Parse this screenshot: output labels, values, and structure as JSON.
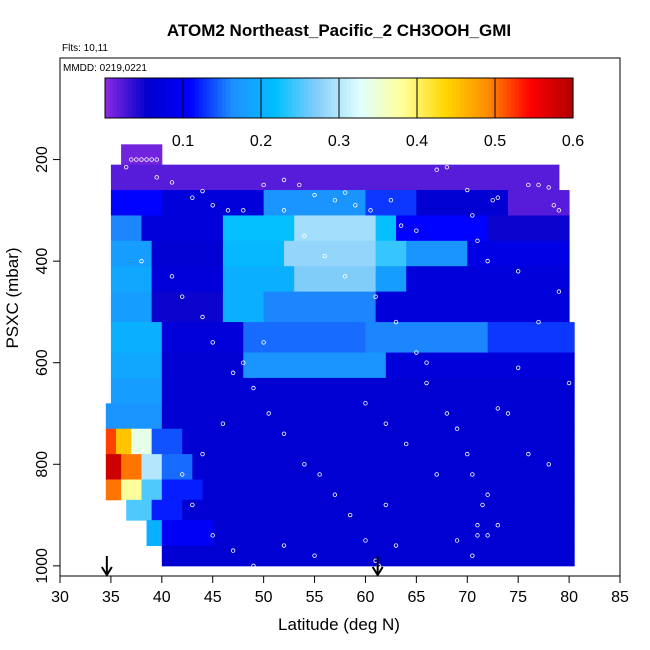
{
  "chart_data": {
    "type": "heatmap",
    "title": "ATOM2 Northeast_Pacific_2 CH3OOH_GMI",
    "flights_label": "Flts: 10,11",
    "dates_label": "MMDD: 0219,0221",
    "xlabel": "Latitude (deg N)",
    "ylabel": "PSXC (mbar)",
    "xlim": [
      30,
      85
    ],
    "ylim": [
      1020,
      0
    ],
    "xticks": [
      "30",
      "35",
      "40",
      "45",
      "50",
      "55",
      "60",
      "65",
      "70",
      "75",
      "80",
      "85"
    ],
    "yticks": [
      "200",
      "400",
      "600",
      "800",
      "1000"
    ],
    "colorbar": {
      "range": [
        0,
        0.6
      ],
      "ticks": [
        "0.1",
        "0.2",
        "0.3",
        "0.4",
        "0.5",
        "0.6"
      ],
      "colors": [
        "#8a2be2",
        "#0000cd",
        "#0000ff",
        "#1e90ff",
        "#00bfff",
        "#87cefa",
        "#e0ffff",
        "#ffff99",
        "#ffd700",
        "#ff8c00",
        "#ff0000",
        "#b00000"
      ]
    },
    "markers_lat": [
      34.6,
      61.2
    ],
    "rows": [
      {
        "p": [
          170,
          210
        ],
        "cells": [
          [
            36,
            40,
            0.01
          ]
        ]
      },
      {
        "p": [
          210,
          260
        ],
        "cells": [
          [
            35,
            58.5,
            0.02
          ],
          [
            58.5,
            79,
            0.02
          ]
        ]
      },
      {
        "p": [
          260,
          310
        ],
        "cells": [
          [
            35,
            40,
            0.11
          ],
          [
            40,
            50,
            0.07
          ],
          [
            50,
            60,
            0.17
          ],
          [
            60,
            65,
            0.13
          ],
          [
            65,
            74,
            0.06
          ],
          [
            74,
            80,
            0.02
          ]
        ]
      },
      {
        "p": [
          310,
          360
        ],
        "cells": [
          [
            35,
            38,
            0.16
          ],
          [
            38,
            46,
            0.07
          ],
          [
            46,
            53,
            0.22
          ],
          [
            53,
            61,
            0.29
          ],
          [
            61,
            63,
            0.22
          ],
          [
            63,
            72,
            0.11
          ],
          [
            72,
            80,
            0.05
          ]
        ]
      },
      {
        "p": [
          360,
          410
        ],
        "cells": [
          [
            35,
            39,
            0.18
          ],
          [
            39,
            46,
            0.06
          ],
          [
            46,
            52,
            0.21
          ],
          [
            52,
            61,
            0.28
          ],
          [
            61,
            64,
            0.24
          ],
          [
            64,
            70,
            0.17
          ],
          [
            70,
            80,
            0.08
          ]
        ]
      },
      {
        "p": [
          410,
          460
        ],
        "cells": [
          [
            35,
            39,
            0.19
          ],
          [
            39,
            46,
            0.07
          ],
          [
            46,
            53,
            0.2
          ],
          [
            53,
            61,
            0.27
          ],
          [
            61,
            64,
            0.18
          ],
          [
            64,
            72,
            0.07
          ],
          [
            72,
            80,
            0.07
          ]
        ]
      },
      {
        "p": [
          460,
          520
        ],
        "cells": [
          [
            35,
            39,
            0.18
          ],
          [
            39,
            46,
            0.05
          ],
          [
            46,
            50,
            0.2
          ],
          [
            50,
            61,
            0.16
          ],
          [
            61,
            80,
            0.07
          ]
        ]
      },
      {
        "p": [
          520,
          580
        ],
        "cells": [
          [
            35,
            40,
            0.2
          ],
          [
            40,
            48,
            0.07
          ],
          [
            48,
            60,
            0.15
          ],
          [
            60,
            72,
            0.16
          ],
          [
            72,
            80.5,
            0.13
          ]
        ]
      },
      {
        "p": [
          580,
          630
        ],
        "cells": [
          [
            35,
            40,
            0.19
          ],
          [
            40,
            48,
            0.06
          ],
          [
            48,
            62,
            0.17
          ],
          [
            62,
            80.5,
            0.07
          ]
        ]
      },
      {
        "p": [
          630,
          680
        ],
        "cells": [
          [
            35,
            40,
            0.18
          ],
          [
            40,
            80.5,
            0.06
          ]
        ]
      },
      {
        "p": [
          680,
          730
        ],
        "cells": [
          [
            34.5,
            40,
            0.17
          ],
          [
            40,
            80.5,
            0.06
          ]
        ]
      },
      {
        "p": [
          730,
          780
        ],
        "cells": [
          [
            34.5,
            35.5,
            0.52
          ],
          [
            35.5,
            37,
            0.45
          ],
          [
            37,
            39,
            0.34
          ],
          [
            39,
            42,
            0.14
          ],
          [
            42,
            80.5,
            0.06
          ]
        ]
      },
      {
        "p": [
          780,
          830
        ],
        "cells": [
          [
            34.5,
            36,
            0.58
          ],
          [
            36,
            38,
            0.5
          ],
          [
            38,
            40,
            0.3
          ],
          [
            40,
            43,
            0.15
          ],
          [
            43,
            80.5,
            0.06
          ]
        ]
      },
      {
        "p": [
          830,
          870
        ],
        "cells": [
          [
            34.5,
            36,
            0.5
          ],
          [
            36,
            38,
            0.38
          ],
          [
            38,
            40,
            0.25
          ],
          [
            40,
            44,
            0.12
          ],
          [
            44,
            80.5,
            0.06
          ]
        ]
      },
      {
        "p": [
          870,
          910
        ],
        "cells": [
          [
            36.5,
            39,
            0.25
          ],
          [
            39,
            42,
            0.12
          ],
          [
            42,
            80.5,
            0.06
          ]
        ]
      },
      {
        "p": [
          910,
          960
        ],
        "cells": [
          [
            38.5,
            40,
            0.2
          ],
          [
            40,
            45,
            0.1
          ],
          [
            45,
            80.5,
            0.06
          ]
        ]
      },
      {
        "p": [
          960,
          1000
        ],
        "cells": [
          [
            40,
            80.5,
            0.06
          ]
        ]
      }
    ],
    "flight_points": [
      [
        37,
        200
      ],
      [
        37.5,
        200
      ],
      [
        38,
        200
      ],
      [
        38.5,
        200
      ],
      [
        39,
        200
      ],
      [
        39.5,
        200
      ],
      [
        36.5,
        215
      ],
      [
        39.5,
        235
      ],
      [
        41,
        245
      ],
      [
        44,
        262
      ],
      [
        43,
        275
      ],
      [
        45,
        290
      ],
      [
        46.5,
        300
      ],
      [
        48,
        300
      ],
      [
        50,
        250
      ],
      [
        52,
        240
      ],
      [
        53.5,
        250
      ],
      [
        55,
        270
      ],
      [
        57,
        280
      ],
      [
        58,
        265
      ],
      [
        59,
        290
      ],
      [
        60.5,
        300
      ],
      [
        62.5,
        280
      ],
      [
        63.5,
        330
      ],
      [
        65,
        340
      ],
      [
        67,
        220
      ],
      [
        68,
        215
      ],
      [
        70,
        260
      ],
      [
        70.5,
        310
      ],
      [
        71,
        360
      ],
      [
        72,
        400
      ],
      [
        72.5,
        280
      ],
      [
        73,
        275
      ],
      [
        75,
        420
      ],
      [
        76,
        250
      ],
      [
        77,
        250
      ],
      [
        78,
        255
      ],
      [
        78.5,
        290
      ],
      [
        79,
        300
      ],
      [
        38,
        400
      ],
      [
        41,
        430
      ],
      [
        42,
        470
      ],
      [
        44,
        510
      ],
      [
        45,
        560
      ],
      [
        47,
        620
      ],
      [
        49,
        650
      ],
      [
        50.5,
        700
      ],
      [
        52,
        740
      ],
      [
        54,
        800
      ],
      [
        55.5,
        820
      ],
      [
        57,
        860
      ],
      [
        58.5,
        900
      ],
      [
        60,
        950
      ],
      [
        61,
        990
      ],
      [
        61.3,
        1000
      ],
      [
        60,
        680
      ],
      [
        62,
        720
      ],
      [
        64,
        760
      ],
      [
        66,
        640
      ],
      [
        68,
        700
      ],
      [
        70,
        780
      ],
      [
        70.5,
        820
      ],
      [
        71,
        920
      ],
      [
        71.5,
        880
      ],
      [
        72,
        860
      ],
      [
        73,
        690
      ],
      [
        75,
        610
      ],
      [
        77,
        520
      ],
      [
        79,
        460
      ],
      [
        80,
        640
      ],
      [
        66,
        600
      ],
      [
        65,
        580
      ],
      [
        63,
        520
      ],
      [
        61,
        470
      ],
      [
        58,
        430
      ],
      [
        56,
        390
      ],
      [
        54,
        350
      ],
      [
        52,
        300
      ],
      [
        50,
        560
      ],
      [
        48,
        600
      ],
      [
        46,
        720
      ],
      [
        44,
        780
      ],
      [
        42,
        820
      ],
      [
        43,
        880
      ],
      [
        45,
        940
      ],
      [
        47,
        970
      ],
      [
        49,
        1000
      ],
      [
        52,
        960
      ],
      [
        55,
        980
      ],
      [
        62,
        880
      ],
      [
        63,
        960
      ],
      [
        67,
        820
      ],
      [
        69,
        730
      ],
      [
        71,
        940
      ],
      [
        72,
        940
      ],
      [
        73,
        920
      ],
      [
        69,
        950
      ],
      [
        70.5,
        980
      ],
      [
        74,
        700
      ],
      [
        76,
        780
      ],
      [
        78,
        800
      ]
    ]
  }
}
